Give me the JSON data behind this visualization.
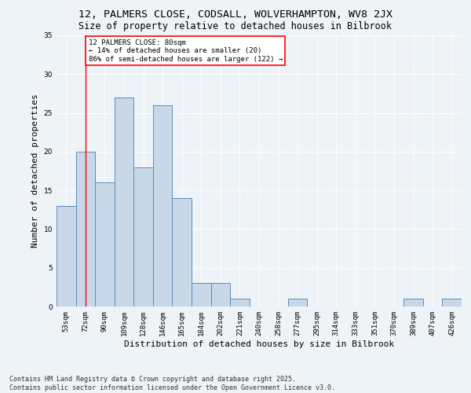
{
  "title_line1": "12, PALMERS CLOSE, CODSALL, WOLVERHAMPTON, WV8 2JX",
  "title_line2": "Size of property relative to detached houses in Bilbrook",
  "xlabel": "Distribution of detached houses by size in Bilbrook",
  "ylabel": "Number of detached properties",
  "categories": [
    "53sqm",
    "72sqm",
    "90sqm",
    "109sqm",
    "128sqm",
    "146sqm",
    "165sqm",
    "184sqm",
    "202sqm",
    "221sqm",
    "240sqm",
    "258sqm",
    "277sqm",
    "295sqm",
    "314sqm",
    "333sqm",
    "351sqm",
    "370sqm",
    "389sqm",
    "407sqm",
    "426sqm"
  ],
  "values": [
    13,
    20,
    16,
    27,
    18,
    26,
    14,
    3,
    3,
    1,
    0,
    0,
    1,
    0,
    0,
    0,
    0,
    0,
    1,
    0,
    1
  ],
  "bar_color": "#c8d8e8",
  "bar_edge_color": "#5b8db8",
  "property_line_x": 1,
  "property_line_color": "red",
  "annotation_text": "12 PALMERS CLOSE: 80sqm\n← 14% of detached houses are smaller (20)\n86% of semi-detached houses are larger (122) →",
  "annotation_box_color": "white",
  "annotation_box_edge_color": "red",
  "ylim": [
    0,
    35
  ],
  "yticks": [
    0,
    5,
    10,
    15,
    20,
    25,
    30,
    35
  ],
  "footer_line1": "Contains HM Land Registry data © Crown copyright and database right 2025.",
  "footer_line2": "Contains public sector information licensed under the Open Government Licence v3.0.",
  "bg_color": "#eef3f8",
  "plot_bg_color": "#eef3f8",
  "grid_color": "white",
  "title_fontsize": 9.5,
  "subtitle_fontsize": 8.5,
  "axis_label_fontsize": 8,
  "tick_fontsize": 6.5,
  "footer_fontsize": 6,
  "annotation_fontsize": 6.5
}
